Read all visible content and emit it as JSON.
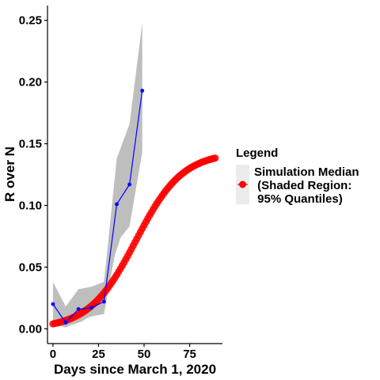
{
  "chart_data": {
    "type": "scatter",
    "title": "",
    "xlabel": "Days since March 1, 2020",
    "ylabel": "R over N",
    "xlim": [
      -3,
      93
    ],
    "ylim": [
      -0.012,
      0.262
    ],
    "x_ticks": [
      0,
      25,
      50,
      75
    ],
    "x_tick_labels": [
      "0",
      "25",
      "50",
      "75"
    ],
    "y_ticks": [
      0.0,
      0.05,
      0.1,
      0.15,
      0.2,
      0.25
    ],
    "y_tick_labels": [
      "0.00",
      "0.05",
      "0.10",
      "0.15",
      "0.20",
      "0.25"
    ],
    "grid": false,
    "legend": {
      "title": "Legend",
      "placement": "right",
      "entry_lines": [
        "Simulation Median",
        " (Shaded Region:",
        " 95% Quantiles)"
      ]
    },
    "colors": {
      "simulation": "#ff0000",
      "observed": "#0000ff",
      "band": "#bebebe",
      "legend_key_bg": "#ebebeb"
    },
    "series": [
      {
        "kind": "observed",
        "x": [
          0,
          7,
          14,
          21,
          28,
          35,
          42,
          49
        ],
        "y": [
          0.02,
          0.005,
          0.016,
          0.017,
          0.022,
          0.101,
          0.117,
          0.193
        ],
        "lower": [
          0.004,
          0.001,
          0.006,
          0.01,
          0.012,
          0.07,
          0.083,
          0.143
        ],
        "upper": [
          0.038,
          0.018,
          0.032,
          0.034,
          0.038,
          0.138,
          0.166,
          0.248
        ]
      },
      {
        "kind": "simulation",
        "logistic": {
          "K": 0.143,
          "r": 0.078,
          "t0": 45.5
        },
        "x_start": 0,
        "x_end": 89,
        "x_step": 1,
        "band": {
          "x": [
            10,
            16,
            22,
            26,
            30,
            34,
            38
          ],
          "lower": [
            0.003,
            0.006,
            0.012,
            0.018,
            0.03,
            0.06,
            0.078
          ],
          "upper": [
            0.006,
            0.012,
            0.022,
            0.03,
            0.048,
            0.078,
            0.092
          ]
        }
      }
    ]
  }
}
